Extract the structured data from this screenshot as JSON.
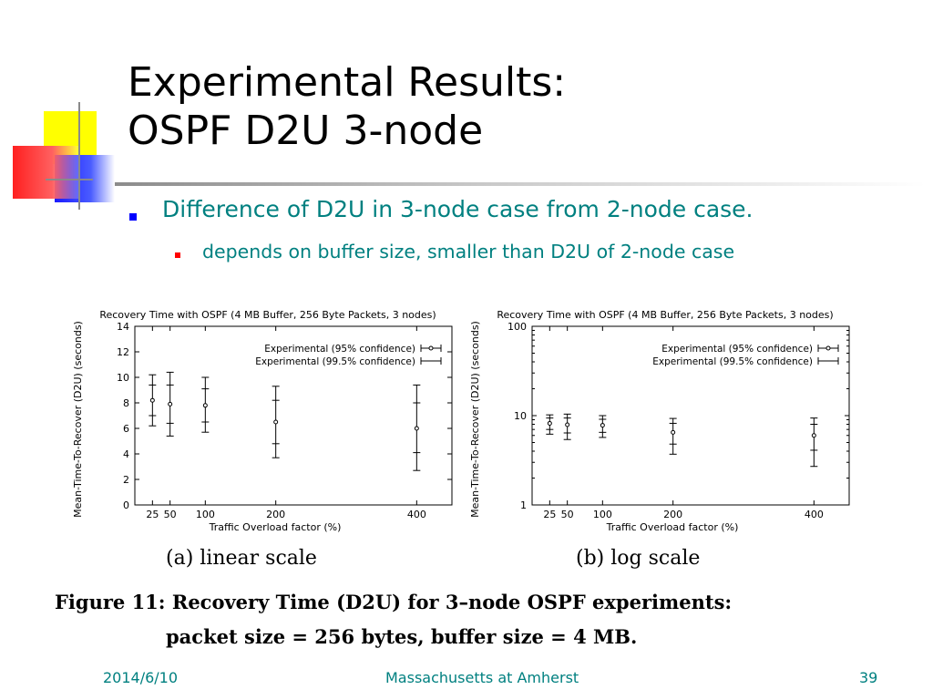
{
  "slide": {
    "title_line1": "Experimental Results:",
    "title_line2": "OSPF D2U 3-node",
    "bullets": [
      "Difference of D2U in 3-node case from 2-node case.",
      "depends on buffer size, smaller than D2U of 2-node case"
    ],
    "caption_line1": "Figure 11:  Recovery Time (D2U) for 3–node OSPF experiments:",
    "caption_line2": "packet size = 256 bytes, buffer size = 4 MB.",
    "footer": {
      "date": "2014/6/10",
      "org": "Massachusetts at Amherst",
      "page": "39"
    },
    "colors": {
      "bullet_text": "#008080",
      "bullet_marker_1": "#0000ff",
      "bullet_marker_2": "#ff0000"
    }
  },
  "chart_data": [
    {
      "type": "scatter",
      "title": "Recovery Time with OSPF (4 MB Buffer, 256 Byte Packets, 3 nodes)",
      "subtitle": "(a) linear scale",
      "xlabel": "Traffic Overload factor (%)",
      "ylabel": "Mean-Time-To-Recover (D2U) (seconds)",
      "yscale": "linear",
      "xlim": [
        0,
        450
      ],
      "ylim": [
        0,
        14
      ],
      "xticks": [
        25,
        50,
        100,
        200,
        400
      ],
      "yticks": [
        0,
        2,
        4,
        6,
        8,
        10,
        12,
        14
      ],
      "legend_position": "top-right",
      "x": [
        25,
        50,
        100,
        200,
        400
      ],
      "y": [
        8.2,
        7.9,
        7.8,
        6.5,
        6.0
      ],
      "series": [
        {
          "name": "Experimental (95% confidence)",
          "low": [
            7.0,
            6.4,
            6.5,
            4.8,
            4.1
          ],
          "high": [
            9.4,
            9.4,
            9.1,
            8.2,
            8.0
          ]
        },
        {
          "name": "Experimental (99.5% confidence)",
          "low": [
            6.2,
            5.4,
            5.7,
            3.7,
            2.7
          ],
          "high": [
            10.2,
            10.4,
            10.0,
            9.3,
            9.4
          ]
        }
      ]
    },
    {
      "type": "scatter",
      "title": "Recovery Time with OSPF (4 MB Buffer, 256 Byte Packets, 3 nodes)",
      "subtitle": "(b) log scale",
      "xlabel": "Traffic Overload factor (%)",
      "ylabel": "Mean-Time-To-Recover (D2U) (seconds)",
      "yscale": "log",
      "xlim": [
        0,
        450
      ],
      "ylim": [
        1,
        100
      ],
      "xticks": [
        25,
        50,
        100,
        200,
        400
      ],
      "yticks": [
        1,
        10,
        100
      ],
      "legend_position": "top-right",
      "x": [
        25,
        50,
        100,
        200,
        400
      ],
      "y": [
        8.2,
        7.9,
        7.8,
        6.5,
        6.0
      ],
      "series": [
        {
          "name": "Experimental (95% confidence)",
          "low": [
            7.0,
            6.4,
            6.5,
            4.8,
            4.1
          ],
          "high": [
            9.4,
            9.4,
            9.1,
            8.2,
            8.0
          ]
        },
        {
          "name": "Experimental (99.5% confidence)",
          "low": [
            6.2,
            5.4,
            5.7,
            3.7,
            2.7
          ],
          "high": [
            10.2,
            10.4,
            10.0,
            9.3,
            9.4
          ]
        }
      ]
    }
  ]
}
